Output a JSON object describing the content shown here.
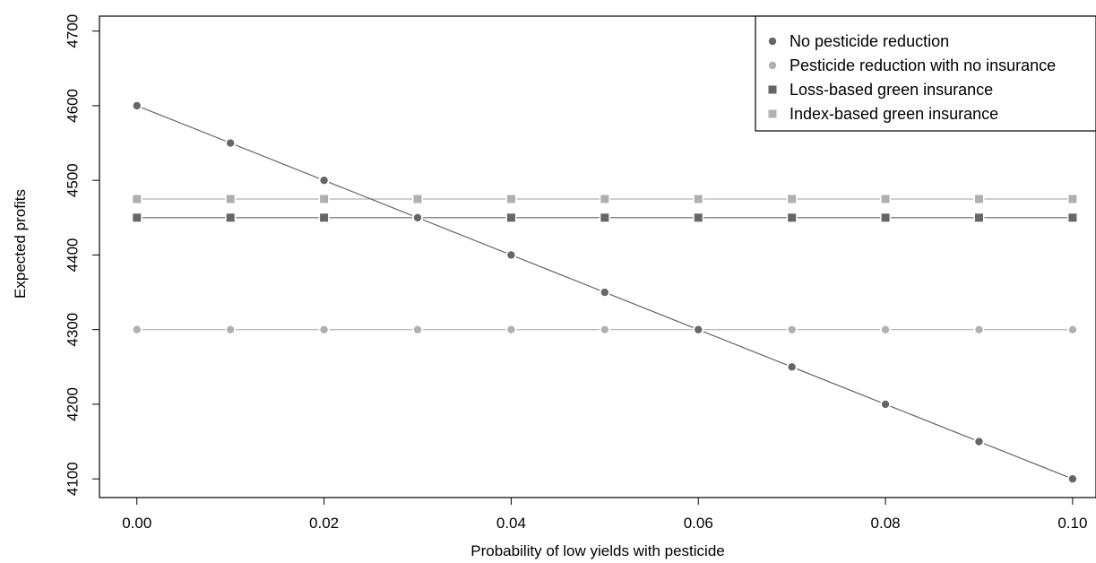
{
  "chart_data": {
    "type": "scatter",
    "title": "",
    "xlabel": "Probability of low yields with pesticide",
    "ylabel": "Expected profits",
    "xlim": [
      -0.004,
      0.1025
    ],
    "ylim": [
      4075,
      4720
    ],
    "x_ticks": [
      0.0,
      0.02,
      0.04,
      0.06,
      0.08,
      0.1
    ],
    "x_tick_labels": [
      "0.00",
      "0.02",
      "0.04",
      "0.06",
      "0.08",
      "0.10"
    ],
    "y_ticks": [
      4100,
      4200,
      4300,
      4400,
      4500,
      4600,
      4700
    ],
    "y_tick_labels": [
      "4100",
      "4200",
      "4300",
      "4400",
      "4500",
      "4600",
      "4700"
    ],
    "grid": false,
    "legend_position": "top-right",
    "x": [
      0.0,
      0.01,
      0.02,
      0.03,
      0.04,
      0.05,
      0.06,
      0.07,
      0.08,
      0.09,
      0.1
    ],
    "series": [
      {
        "name": "No pesticide reduction",
        "marker": "circle",
        "color": "#666666",
        "values": [
          4600,
          4550,
          4500,
          4450,
          4400,
          4350,
          4300,
          4250,
          4200,
          4150,
          4100
        ]
      },
      {
        "name": "Pesticide reduction with no insurance",
        "marker": "circle",
        "color": "#b0b0b0",
        "values": [
          4300,
          4300,
          4300,
          4300,
          4300,
          4300,
          4300,
          4300,
          4300,
          4300,
          4300
        ]
      },
      {
        "name": "Loss-based green insurance",
        "marker": "square",
        "color": "#666666",
        "values": [
          4450,
          4450,
          4450,
          4450,
          4450,
          4450,
          4450,
          4450,
          4450,
          4450,
          4450
        ]
      },
      {
        "name": "Index-based green insurance",
        "marker": "square",
        "color": "#b0b0b0",
        "values": [
          4475,
          4475,
          4475,
          4475,
          4475,
          4475,
          4475,
          4475,
          4475,
          4475,
          4475
        ]
      }
    ]
  }
}
